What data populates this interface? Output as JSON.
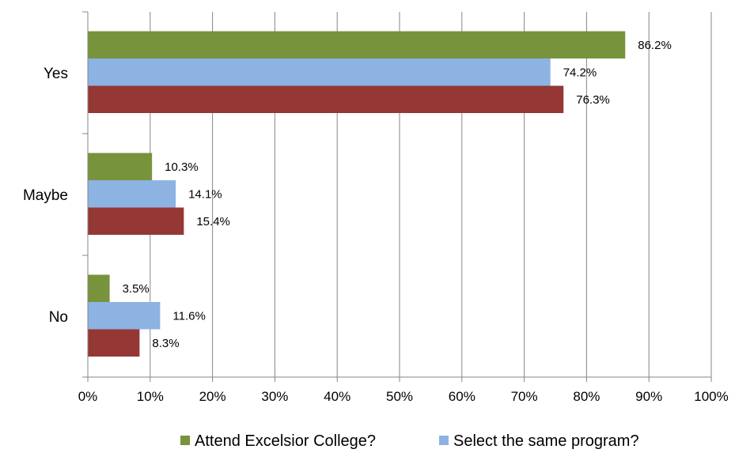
{
  "chart_data": {
    "type": "bar",
    "orientation": "horizontal",
    "categories": [
      "Yes",
      "Maybe",
      "No"
    ],
    "series": [
      {
        "name": "Attend Excelsior College?",
        "color": "#77933c",
        "values": [
          86.2,
          10.3,
          3.5
        ],
        "labels": [
          "86.2%",
          "10.3%",
          "3.5%"
        ]
      },
      {
        "name": "Select the same program?",
        "color": "#8db3e2",
        "values": [
          74.2,
          14.1,
          11.6
        ],
        "labels": [
          "74.2%",
          "14.1%",
          "11.6%"
        ]
      },
      {
        "name": "",
        "color": "#953735",
        "values": [
          76.3,
          15.4,
          8.3
        ],
        "labels": [
          "76.3%",
          "15.4%",
          "8.3%"
        ]
      }
    ],
    "xlim": [
      0,
      100
    ],
    "xticks": [
      "0%",
      "10%",
      "20%",
      "30%",
      "40%",
      "50%",
      "60%",
      "70%",
      "80%",
      "90%",
      "100%"
    ],
    "grid": "vertical",
    "legend": "bottom",
    "title": "",
    "xlabel": "",
    "ylabel": ""
  }
}
